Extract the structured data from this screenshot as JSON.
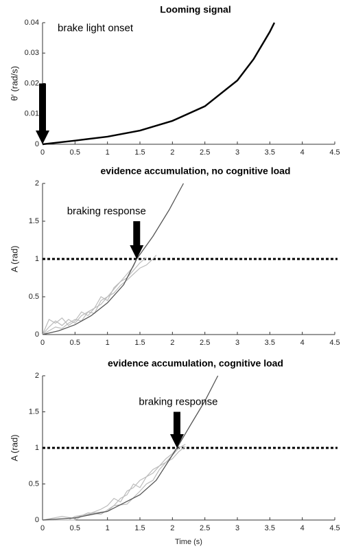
{
  "chart_data": [
    {
      "type": "line",
      "title": "Looming signal",
      "ylabel": "θ′ (rad/s)",
      "xlim": [
        0,
        4.5
      ],
      "ylim": [
        0,
        0.04
      ],
      "xticks": [
        0,
        0.5,
        1,
        1.5,
        2,
        2.5,
        3,
        3.5,
        4,
        4.5
      ],
      "yticks": [
        0,
        0.01,
        0.02,
        0.03,
        0.04
      ],
      "series": [
        {
          "color": "#000000",
          "width": 2.5,
          "x": [
            0,
            0.5,
            1,
            1.5,
            2,
            2.5,
            3,
            3.25,
            3.5,
            3.57
          ],
          "values": [
            0,
            0.0012,
            0.0025,
            0.0045,
            0.0077,
            0.0125,
            0.021,
            0.028,
            0.037,
            0.04
          ]
        }
      ],
      "annotation": {
        "text": "brake light onset",
        "x": 0,
        "y_from": 0.02,
        "y_to": 0
      }
    },
    {
      "type": "line",
      "title": "evidence accumulation, no cognitive load",
      "ylabel": "A (rad)",
      "xlim": [
        0,
        4.5
      ],
      "ylim": [
        0,
        2
      ],
      "xticks": [
        0,
        0.5,
        1,
        1.5,
        2,
        2.5,
        3,
        3.5,
        4,
        4.5
      ],
      "yticks": [
        0,
        0.5,
        1,
        1.5,
        2
      ],
      "threshold": 1,
      "series": [
        {
          "color": "#bbbbbb",
          "width": 1.2,
          "x": [
            0,
            0.1,
            0.2,
            0.3,
            0.4,
            0.5,
            0.6,
            0.7,
            0.8,
            0.9,
            1,
            1.1,
            1.2,
            1.3,
            1.4,
            1.5,
            1.6,
            1.7,
            1.75
          ],
          "values": [
            0,
            0.1,
            0.18,
            0.12,
            0.2,
            0.15,
            0.25,
            0.3,
            0.28,
            0.45,
            0.5,
            0.55,
            0.65,
            0.72,
            0.8,
            0.88,
            0.92,
            1,
            1.05
          ]
        },
        {
          "color": "#bbbbbb",
          "width": 1.2,
          "x": [
            0,
            0.1,
            0.2,
            0.3,
            0.4,
            0.5,
            0.6,
            0.7,
            0.8,
            0.9,
            1,
            1.1,
            1.2,
            1.3,
            1.4,
            1.45
          ],
          "values": [
            0,
            0.05,
            0.1,
            0.08,
            0.15,
            0.2,
            0.18,
            0.3,
            0.35,
            0.4,
            0.5,
            0.6,
            0.7,
            0.8,
            0.9,
            1
          ]
        },
        {
          "color": "#bbbbbb",
          "width": 1.2,
          "x": [
            0,
            0.1,
            0.2,
            0.3,
            0.4,
            0.5,
            0.6,
            0.7,
            0.8,
            0.9,
            1,
            1.1,
            1.2,
            1.3,
            1.4,
            1.5,
            1.6
          ],
          "values": [
            0,
            0.2,
            0.15,
            0.22,
            0.12,
            0.18,
            0.3,
            0.25,
            0.35,
            0.5,
            0.45,
            0.62,
            0.7,
            0.75,
            0.85,
            0.95,
            1.02
          ]
        },
        {
          "color": "#555555",
          "width": 1.3,
          "x": [
            0,
            0.25,
            0.5,
            0.75,
            1,
            1.25,
            1.45,
            1.7,
            1.95,
            2.17
          ],
          "values": [
            0,
            0.05,
            0.13,
            0.25,
            0.42,
            0.66,
            1,
            1.3,
            1.65,
            2
          ]
        }
      ],
      "annotation": {
        "text": "braking response",
        "x": 1.45,
        "y_from": 1.5,
        "y_to": 1
      }
    },
    {
      "type": "line",
      "title": "evidence accumulation, cognitive load",
      "ylabel": "A (rad)",
      "xlabel": "Time (s)",
      "xlim": [
        0,
        4.5
      ],
      "ylim": [
        0,
        2
      ],
      "xticks": [
        0,
        0.5,
        1,
        1.5,
        2,
        2.5,
        3,
        3.5,
        4,
        4.5
      ],
      "yticks": [
        0,
        0.5,
        1,
        1.5,
        2
      ],
      "threshold": 1,
      "series": [
        {
          "color": "#bbbbbb",
          "width": 1.2,
          "x": [
            0,
            0.4,
            0.5,
            0.7,
            0.9,
            1,
            1.1,
            1.2,
            1.3,
            1.4,
            1.5,
            1.6,
            1.7,
            1.8,
            1.9,
            2,
            2.1,
            2.2
          ],
          "values": [
            0,
            0,
            0.05,
            0.08,
            0.15,
            0.2,
            0.3,
            0.25,
            0.4,
            0.45,
            0.55,
            0.6,
            0.65,
            0.75,
            0.8,
            0.9,
            1,
            1.05
          ]
        },
        {
          "color": "#bbbbbb",
          "width": 1.2,
          "x": [
            0,
            0.5,
            0.6,
            0.8,
            1,
            1.1,
            1.2,
            1.3,
            1.4,
            1.5,
            1.6,
            1.7,
            1.8,
            1.9,
            2,
            2.07
          ],
          "values": [
            0,
            0,
            0.05,
            0.1,
            0.12,
            0.2,
            0.3,
            0.35,
            0.5,
            0.45,
            0.6,
            0.7,
            0.75,
            0.85,
            0.92,
            1
          ]
        },
        {
          "color": "#bbbbbb",
          "width": 1.2,
          "x": [
            0,
            0.3,
            0.5,
            0.7,
            0.9,
            1.1,
            1.3,
            1.5,
            1.6,
            1.7,
            1.8,
            1.9,
            2,
            2.1,
            2.2
          ],
          "values": [
            0,
            0.05,
            0.02,
            0.1,
            0.08,
            0.2,
            0.22,
            0.4,
            0.5,
            0.55,
            0.7,
            0.8,
            0.85,
            0.95,
            1.02
          ]
        },
        {
          "color": "#555555",
          "width": 1.3,
          "x": [
            0,
            0.5,
            1,
            1.5,
            1.75,
            2.07,
            2.3,
            2.5,
            2.7
          ],
          "values": [
            0,
            0.03,
            0.12,
            0.35,
            0.55,
            1,
            1.35,
            1.65,
            2
          ]
        }
      ],
      "annotation": {
        "text": "braking response",
        "x": 2.07,
        "y_from": 1.5,
        "y_to": 1
      }
    }
  ]
}
